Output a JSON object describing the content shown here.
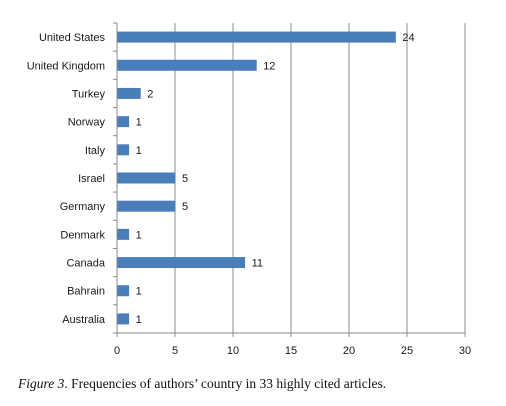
{
  "chart_data": {
    "type": "bar",
    "orientation": "horizontal",
    "categories": [
      "United States",
      "United Kingdom",
      "Turkey",
      "Norway",
      "Italy",
      "Israel",
      "Germany",
      "Denmark",
      "Canada",
      "Bahrain",
      "Australia"
    ],
    "values": [
      24,
      12,
      2,
      1,
      1,
      5,
      5,
      1,
      11,
      1,
      1
    ],
    "xlim": [
      0,
      30
    ],
    "x_ticks": [
      0,
      5,
      10,
      15,
      20,
      25,
      30
    ],
    "grid": "vertical",
    "data_labels": true,
    "legend": "none",
    "bar_color": "#4a7ebb"
  },
  "caption": {
    "figure_label": "Figure 3",
    "text": ". Frequencies of authors’ country in 33 highly cited articles."
  }
}
